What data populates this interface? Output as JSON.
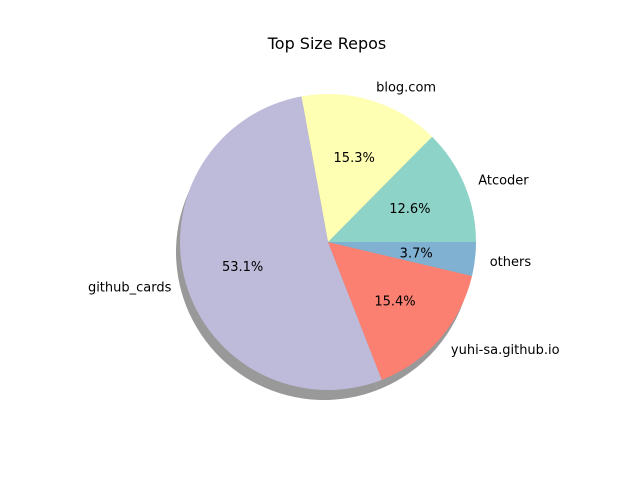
{
  "chart_data": {
    "type": "pie",
    "title": "Top Size Repos",
    "start_angle_deg": 0,
    "direction": "counterclockwise",
    "shadow": true,
    "slices": [
      {
        "label": "Atcoder",
        "value": 12.6,
        "pct_label": "12.6%",
        "color": "#8dd3c7"
      },
      {
        "label": "blog.com",
        "value": 15.3,
        "pct_label": "15.3%",
        "color": "#ffffb3"
      },
      {
        "label": "github_cards",
        "value": 53.1,
        "pct_label": "53.1%",
        "color": "#bebada"
      },
      {
        "label": "yuhi-sa.github.io",
        "value": 15.4,
        "pct_label": "15.4%",
        "color": "#fb8072"
      },
      {
        "label": "others",
        "value": 3.7,
        "pct_label": "3.7%",
        "color": "#80b1d3"
      }
    ]
  }
}
